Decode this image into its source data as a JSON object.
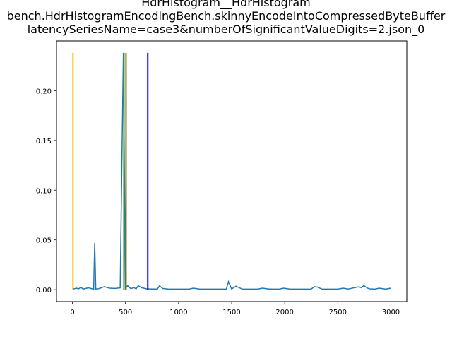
{
  "chart_data": {
    "type": "line",
    "title_lines": [
      "HdrHistogram__HdrHistogram",
      "bench.HdrHistogramEncodingBench.skinnyEncodeIntoCompressedByteBuffer",
      "latencySeriesName=case3&numberOfSignificantValueDigits=2.json_0"
    ],
    "xlabel": "",
    "ylabel": "",
    "xlim": [
      -150,
      3150
    ],
    "ylim": [
      -0.012,
      0.25
    ],
    "x_ticks": [
      0,
      500,
      1000,
      1500,
      2000,
      2500,
      3000
    ],
    "y_ticks": [
      0.0,
      0.05,
      0.1,
      0.15,
      0.2
    ],
    "y_tick_labels": [
      "0.00",
      "0.05",
      "0.10",
      "0.15",
      "0.20"
    ],
    "grid": false,
    "series": [
      {
        "color": "#1f77b4",
        "x": [
          0,
          40,
          60,
          80,
          100,
          150,
          200,
          210,
          220,
          250,
          300,
          350,
          400,
          450,
          480,
          500,
          520,
          550,
          580,
          600,
          620,
          650,
          700,
          750,
          800,
          820,
          850,
          900,
          950,
          1000,
          1050,
          1100,
          1140,
          1200,
          1250,
          1300,
          1350,
          1400,
          1450,
          1470,
          1500,
          1540,
          1600,
          1650,
          1700,
          1750,
          1790,
          1850,
          1900,
          1950,
          1990,
          2050,
          2100,
          2150,
          2200,
          2250,
          2280,
          2310,
          2350,
          2400,
          2450,
          2500,
          2550,
          2600,
          2650,
          2680,
          2700,
          2720,
          2745,
          2780,
          2800,
          2850,
          2890,
          2950,
          3000
        ],
        "y": [
          0.0005,
          0.0015,
          0.0008,
          0.0025,
          0.0006,
          0.0018,
          0.0005,
          0.047,
          0.0006,
          0.001,
          0.003,
          0.0015,
          0.0012,
          0.0018,
          0.238,
          0.001,
          0.004,
          0.001,
          0.002,
          0.0008,
          0.004,
          0.002,
          0.0008,
          0.0006,
          0.0006,
          0.0038,
          0.0012,
          0.0006,
          0.0005,
          0.0005,
          0.0005,
          0.0005,
          0.0015,
          0.0005,
          0.0005,
          0.0005,
          0.0005,
          0.0005,
          0.0006,
          0.008,
          0.0006,
          0.0035,
          0.0006,
          0.0005,
          0.0005,
          0.0006,
          0.0015,
          0.0006,
          0.0005,
          0.0005,
          0.0015,
          0.0005,
          0.0005,
          0.0005,
          0.0005,
          0.0006,
          0.003,
          0.0025,
          0.0006,
          0.0005,
          0.0005,
          0.0005,
          0.0015,
          0.0006,
          0.0018,
          0.0025,
          0.0028,
          0.002,
          0.004,
          0.0015,
          0.0008,
          0.0005,
          0.0015,
          0.0005,
          0.0015
        ]
      }
    ],
    "vertical_lines": [
      {
        "x": 5,
        "color": "#ffbf00"
      },
      {
        "x": 485,
        "color": "#2ca02c"
      },
      {
        "x": 505,
        "color": "#8b6914"
      },
      {
        "x": 710,
        "color": "#0000ff"
      }
    ],
    "vline_top": 0.238
  }
}
